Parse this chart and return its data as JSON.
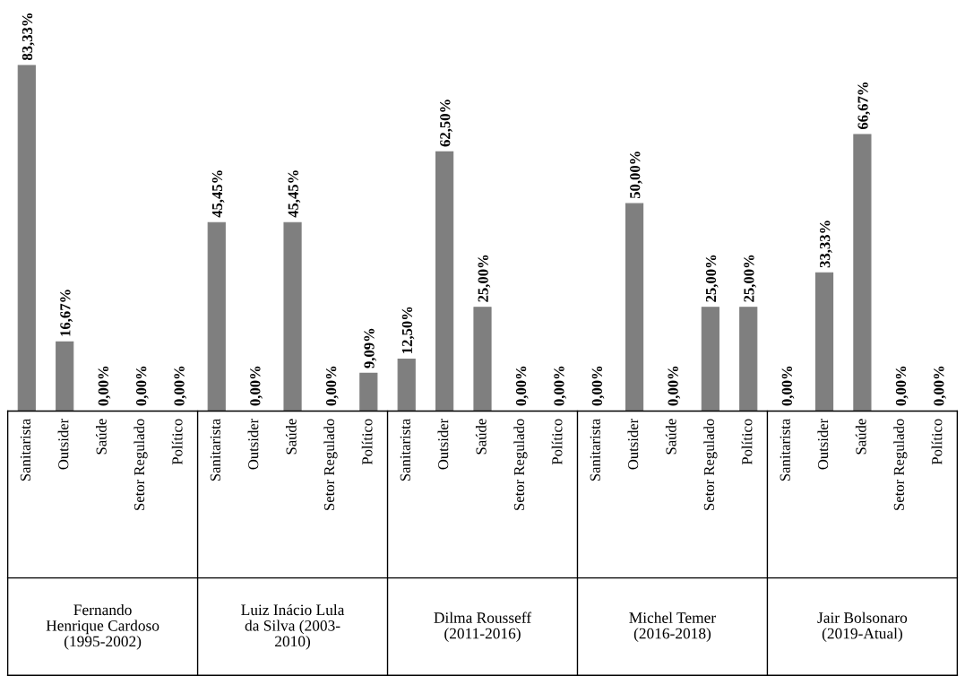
{
  "chart_data": {
    "type": "bar",
    "categories": [
      "Sanitarista",
      "Outsider",
      "Saúde",
      "Setor Regulado",
      "Político",
      "Sanitarista",
      "Outsider",
      "Saúde",
      "Setor Regulado",
      "Político",
      "Sanitarista",
      "Outsider",
      "Saúde",
      "Setor Regulado",
      "Político",
      "Sanitarista",
      "Outsider",
      "Saúde",
      "Setor Regulado",
      "Político",
      "Sanitarista",
      "Outsider",
      "Saúde",
      "Setor Regulado",
      "Político"
    ],
    "values": [
      83.33,
      16.67,
      0,
      0,
      0,
      45.45,
      0,
      45.45,
      0,
      9.09,
      12.5,
      62.5,
      25.0,
      0,
      0,
      0,
      50.0,
      0,
      25.0,
      25.0,
      0,
      33.33,
      66.67,
      0,
      0
    ],
    "value_labels": [
      "83,33%",
      "16,67%",
      "0,00%",
      "0,00%",
      "0,00%",
      "45,45%",
      "0,00%",
      "45,45%",
      "0,00%",
      "9,09%",
      "12,50%",
      "62,50%",
      "25,00%",
      "0,00%",
      "0,00%",
      "0,00%",
      "50,00%",
      "0,00%",
      "25,00%",
      "25,00%",
      "0,00%",
      "33,33%",
      "66,67%",
      "0,00%",
      "0,00%"
    ],
    "color": "#7f7f7f",
    "annotations": [
      "Fernando\nHenrique Cardoso\n(1995-2002)",
      "Luiz Inácio Lula\nda Silva (2003-\n2010)",
      "Dilma Rousseff\n(2011-2016)",
      "Michel Temer\n(2016-2018)",
      "Jair Bolsonaro\n(2019-Atual)"
    ],
    "grid": false
  }
}
